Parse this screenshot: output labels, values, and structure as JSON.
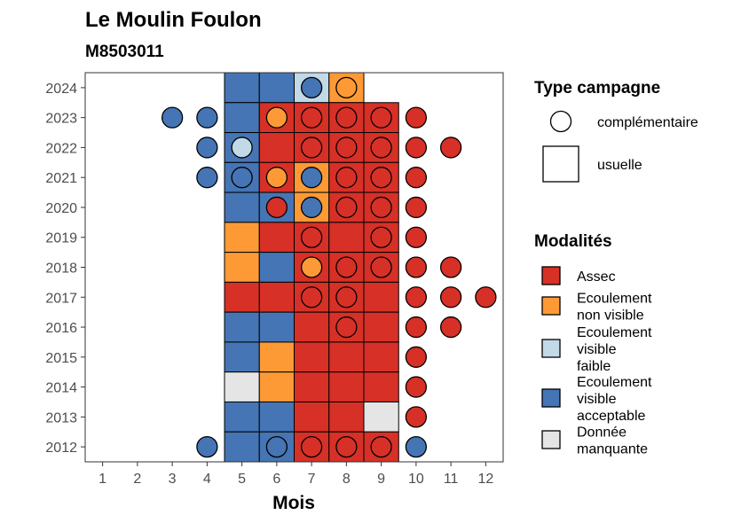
{
  "chart_data": {
    "type": "heatmap",
    "title": "Le Moulin Foulon",
    "subtitle": "M8503011",
    "xlabel": "Mois",
    "ylabel": "",
    "x_ticks": [
      "1",
      "2",
      "3",
      "4",
      "5",
      "6",
      "7",
      "8",
      "9",
      "10",
      "11",
      "12"
    ],
    "y_ticks": [
      "2012",
      "2013",
      "2014",
      "2015",
      "2016",
      "2017",
      "2018",
      "2019",
      "2020",
      "2021",
      "2022",
      "2023",
      "2024"
    ],
    "xlim": [
      0.5,
      12.5
    ],
    "ylim": [
      2011.5,
      2024.5
    ],
    "legend_shape": {
      "title": "Type campagne",
      "entries": [
        {
          "shape": "circle",
          "label": "complémentaire"
        },
        {
          "shape": "square",
          "label": "usuelle"
        }
      ]
    },
    "legend_fill": {
      "title": "Modalités",
      "entries": [
        {
          "key": "assec",
          "label_lines": [
            "Assec"
          ],
          "color": "#d73027"
        },
        {
          "key": "nonvis",
          "label_lines": [
            "Ecoulement",
            "non visible"
          ],
          "color": "#fd9a35"
        },
        {
          "key": "faible",
          "label_lines": [
            "Ecoulement",
            "visible",
            "faible"
          ],
          "color": "#c2d9e8"
        },
        {
          "key": "accept",
          "label_lines": [
            "Ecoulement",
            "visible",
            "acceptable"
          ],
          "color": "#4575b4"
        },
        {
          "key": "manq",
          "label_lines": [
            "Donnée",
            "manquante"
          ],
          "color": "#e5e5e5"
        }
      ]
    },
    "squares": [
      {
        "year": 2024,
        "month": 5,
        "mod": "accept"
      },
      {
        "year": 2024,
        "month": 6,
        "mod": "accept"
      },
      {
        "year": 2024,
        "month": 7,
        "mod": "faible"
      },
      {
        "year": 2024,
        "month": 8,
        "mod": "nonvis"
      },
      {
        "year": 2023,
        "month": 5,
        "mod": "accept"
      },
      {
        "year": 2023,
        "month": 6,
        "mod": "assec"
      },
      {
        "year": 2023,
        "month": 7,
        "mod": "assec"
      },
      {
        "year": 2023,
        "month": 8,
        "mod": "assec"
      },
      {
        "year": 2023,
        "month": 9,
        "mod": "assec"
      },
      {
        "year": 2022,
        "month": 5,
        "mod": "accept"
      },
      {
        "year": 2022,
        "month": 6,
        "mod": "assec"
      },
      {
        "year": 2022,
        "month": 7,
        "mod": "assec"
      },
      {
        "year": 2022,
        "month": 8,
        "mod": "assec"
      },
      {
        "year": 2022,
        "month": 9,
        "mod": "assec"
      },
      {
        "year": 2021,
        "month": 5,
        "mod": "accept"
      },
      {
        "year": 2021,
        "month": 6,
        "mod": "assec"
      },
      {
        "year": 2021,
        "month": 7,
        "mod": "nonvis"
      },
      {
        "year": 2021,
        "month": 8,
        "mod": "assec"
      },
      {
        "year": 2021,
        "month": 9,
        "mod": "assec"
      },
      {
        "year": 2020,
        "month": 5,
        "mod": "accept"
      },
      {
        "year": 2020,
        "month": 6,
        "mod": "accept"
      },
      {
        "year": 2020,
        "month": 7,
        "mod": "nonvis"
      },
      {
        "year": 2020,
        "month": 8,
        "mod": "assec"
      },
      {
        "year": 2020,
        "month": 9,
        "mod": "assec"
      },
      {
        "year": 2019,
        "month": 5,
        "mod": "nonvis"
      },
      {
        "year": 2019,
        "month": 6,
        "mod": "assec"
      },
      {
        "year": 2019,
        "month": 7,
        "mod": "assec"
      },
      {
        "year": 2019,
        "month": 8,
        "mod": "assec"
      },
      {
        "year": 2019,
        "month": 9,
        "mod": "assec"
      },
      {
        "year": 2018,
        "month": 5,
        "mod": "nonvis"
      },
      {
        "year": 2018,
        "month": 6,
        "mod": "accept"
      },
      {
        "year": 2018,
        "month": 7,
        "mod": "assec"
      },
      {
        "year": 2018,
        "month": 8,
        "mod": "assec"
      },
      {
        "year": 2018,
        "month": 9,
        "mod": "assec"
      },
      {
        "year": 2017,
        "month": 5,
        "mod": "assec"
      },
      {
        "year": 2017,
        "month": 6,
        "mod": "assec"
      },
      {
        "year": 2017,
        "month": 7,
        "mod": "assec"
      },
      {
        "year": 2017,
        "month": 8,
        "mod": "assec"
      },
      {
        "year": 2017,
        "month": 9,
        "mod": "assec"
      },
      {
        "year": 2016,
        "month": 5,
        "mod": "accept"
      },
      {
        "year": 2016,
        "month": 6,
        "mod": "accept"
      },
      {
        "year": 2016,
        "month": 7,
        "mod": "assec"
      },
      {
        "year": 2016,
        "month": 8,
        "mod": "assec"
      },
      {
        "year": 2016,
        "month": 9,
        "mod": "assec"
      },
      {
        "year": 2015,
        "month": 5,
        "mod": "accept"
      },
      {
        "year": 2015,
        "month": 6,
        "mod": "nonvis"
      },
      {
        "year": 2015,
        "month": 7,
        "mod": "assec"
      },
      {
        "year": 2015,
        "month": 8,
        "mod": "assec"
      },
      {
        "year": 2015,
        "month": 9,
        "mod": "assec"
      },
      {
        "year": 2014,
        "month": 5,
        "mod": "manq"
      },
      {
        "year": 2014,
        "month": 6,
        "mod": "nonvis"
      },
      {
        "year": 2014,
        "month": 7,
        "mod": "assec"
      },
      {
        "year": 2014,
        "month": 8,
        "mod": "assec"
      },
      {
        "year": 2014,
        "month": 9,
        "mod": "assec"
      },
      {
        "year": 2013,
        "month": 5,
        "mod": "accept"
      },
      {
        "year": 2013,
        "month": 6,
        "mod": "accept"
      },
      {
        "year": 2013,
        "month": 7,
        "mod": "assec"
      },
      {
        "year": 2013,
        "month": 8,
        "mod": "assec"
      },
      {
        "year": 2013,
        "month": 9,
        "mod": "manq"
      },
      {
        "year": 2012,
        "month": 5,
        "mod": "accept"
      },
      {
        "year": 2012,
        "month": 6,
        "mod": "accept"
      },
      {
        "year": 2012,
        "month": 7,
        "mod": "assec"
      },
      {
        "year": 2012,
        "month": 8,
        "mod": "assec"
      },
      {
        "year": 2012,
        "month": 9,
        "mod": "assec"
      }
    ],
    "circles": [
      {
        "year": 2024,
        "month": 7,
        "mod": "accept"
      },
      {
        "year": 2024,
        "month": 8,
        "mod": "nonvis"
      },
      {
        "year": 2023,
        "month": 3,
        "mod": "accept"
      },
      {
        "year": 2023,
        "month": 4,
        "mod": "accept"
      },
      {
        "year": 2023,
        "month": 6,
        "mod": "nonvis"
      },
      {
        "year": 2023,
        "month": 7,
        "mod": "assec"
      },
      {
        "year": 2023,
        "month": 8,
        "mod": "assec"
      },
      {
        "year": 2023,
        "month": 9,
        "mod": "assec"
      },
      {
        "year": 2023,
        "month": 10,
        "mod": "assec"
      },
      {
        "year": 2022,
        "month": 4,
        "mod": "accept"
      },
      {
        "year": 2022,
        "month": 5,
        "mod": "faible"
      },
      {
        "year": 2022,
        "month": 7,
        "mod": "assec"
      },
      {
        "year": 2022,
        "month": 8,
        "mod": "assec"
      },
      {
        "year": 2022,
        "month": 9,
        "mod": "assec"
      },
      {
        "year": 2022,
        "month": 10,
        "mod": "assec"
      },
      {
        "year": 2022,
        "month": 11,
        "mod": "assec"
      },
      {
        "year": 2021,
        "month": 4,
        "mod": "accept"
      },
      {
        "year": 2021,
        "month": 5,
        "mod": "accept"
      },
      {
        "year": 2021,
        "month": 6,
        "mod": "nonvis"
      },
      {
        "year": 2021,
        "month": 7,
        "mod": "accept"
      },
      {
        "year": 2021,
        "month": 8,
        "mod": "assec"
      },
      {
        "year": 2021,
        "month": 9,
        "mod": "assec"
      },
      {
        "year": 2021,
        "month": 10,
        "mod": "assec"
      },
      {
        "year": 2020,
        "month": 6,
        "mod": "assec"
      },
      {
        "year": 2020,
        "month": 7,
        "mod": "accept"
      },
      {
        "year": 2020,
        "month": 8,
        "mod": "assec"
      },
      {
        "year": 2020,
        "month": 9,
        "mod": "assec"
      },
      {
        "year": 2020,
        "month": 10,
        "mod": "assec"
      },
      {
        "year": 2019,
        "month": 7,
        "mod": "assec"
      },
      {
        "year": 2019,
        "month": 9,
        "mod": "assec"
      },
      {
        "year": 2019,
        "month": 10,
        "mod": "assec"
      },
      {
        "year": 2018,
        "month": 7,
        "mod": "nonvis"
      },
      {
        "year": 2018,
        "month": 8,
        "mod": "assec"
      },
      {
        "year": 2018,
        "month": 9,
        "mod": "assec"
      },
      {
        "year": 2018,
        "month": 10,
        "mod": "assec"
      },
      {
        "year": 2018,
        "month": 11,
        "mod": "assec"
      },
      {
        "year": 2017,
        "month": 7,
        "mod": "assec"
      },
      {
        "year": 2017,
        "month": 8,
        "mod": "assec"
      },
      {
        "year": 2017,
        "month": 10,
        "mod": "assec"
      },
      {
        "year": 2017,
        "month": 11,
        "mod": "assec"
      },
      {
        "year": 2017,
        "month": 12,
        "mod": "assec"
      },
      {
        "year": 2016,
        "month": 8,
        "mod": "assec"
      },
      {
        "year": 2016,
        "month": 10,
        "mod": "assec"
      },
      {
        "year": 2016,
        "month": 11,
        "mod": "assec"
      },
      {
        "year": 2015,
        "month": 10,
        "mod": "assec"
      },
      {
        "year": 2014,
        "month": 10,
        "mod": "assec"
      },
      {
        "year": 2013,
        "month": 10,
        "mod": "assec"
      },
      {
        "year": 2012,
        "month": 4,
        "mod": "accept"
      },
      {
        "year": 2012,
        "month": 6,
        "mod": "accept"
      },
      {
        "year": 2012,
        "month": 7,
        "mod": "assec"
      },
      {
        "year": 2012,
        "month": 8,
        "mod": "assec"
      },
      {
        "year": 2012,
        "month": 9,
        "mod": "assec"
      },
      {
        "year": 2012,
        "month": 10,
        "mod": "accept"
      }
    ]
  }
}
